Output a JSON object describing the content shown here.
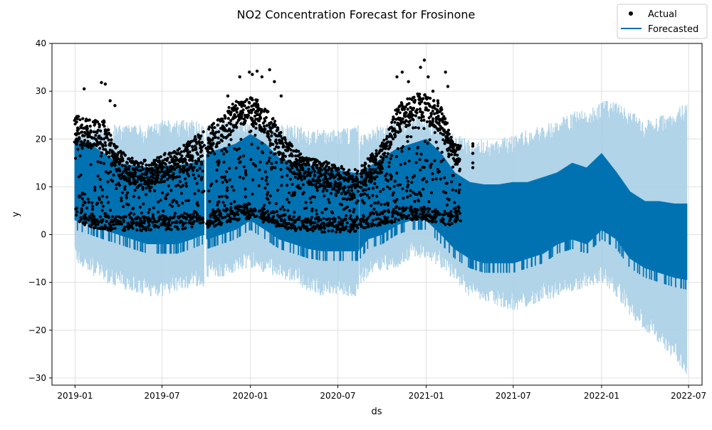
{
  "chart_data": {
    "type": "line",
    "title": "NO2 Concentration Forecast for Frosinone",
    "xlabel": "ds",
    "ylabel": "y",
    "xlim": [
      "2018-11-14",
      "2022-07-29"
    ],
    "ylim": [
      -31.5,
      40
    ],
    "x_ticks": [
      "2019-01",
      "2019-07",
      "2020-01",
      "2020-07",
      "2021-01",
      "2021-07",
      "2022-01",
      "2022-07"
    ],
    "y_ticks": [
      40,
      30,
      20,
      10,
      0,
      -10,
      -20,
      -30
    ],
    "y_tick_labels": [
      "40",
      "30",
      "20",
      "10",
      "0",
      "−10",
      "−20",
      "−30"
    ],
    "grid": true,
    "legend": {
      "placement": "top-right",
      "entries": [
        "Actual",
        "Forecasted"
      ]
    },
    "colors": {
      "forecast": "#0072B2",
      "interval": "#a9cfe6",
      "actual": "#000000"
    },
    "data_end": "2021-04-08",
    "gaps": [
      [
        "2019-09-26",
        "2019-10-02"
      ],
      [
        "2020-08-13",
        "2020-08-16"
      ]
    ],
    "series": [
      {
        "name": "Forecasted",
        "kind": "daily-cycle band",
        "x": [
          "2019-01-01",
          "2019-02-01",
          "2019-03-01",
          "2019-04-01",
          "2019-05-01",
          "2019-06-01",
          "2019-07-01",
          "2019-08-01",
          "2019-09-01",
          "2019-09-25",
          "2019-10-03",
          "2019-11-01",
          "2019-12-01",
          "2020-01-01",
          "2020-02-01",
          "2020-03-01",
          "2020-04-01",
          "2020-05-01",
          "2020-06-01",
          "2020-07-01",
          "2020-08-12",
          "2020-08-17",
          "2020-09-01",
          "2020-10-01",
          "2020-11-01",
          "2020-12-01",
          "2021-01-01",
          "2021-02-01",
          "2021-03-01",
          "2021-04-01",
          "2021-05-01",
          "2021-06-01",
          "2021-07-01",
          "2021-08-01",
          "2021-09-01",
          "2021-10-01",
          "2021-11-01",
          "2021-12-01",
          "2022-01-01",
          "2022-02-01",
          "2022-03-01",
          "2022-04-01",
          "2022-05-01",
          "2022-06-01",
          "2022-06-27"
        ],
        "high": [
          20,
          19,
          17,
          15,
          14.5,
          14,
          14.5,
          14.5,
          15,
          15.5,
          17,
          18,
          19,
          21,
          19,
          16,
          15,
          14.5,
          14,
          13.5,
          12.8,
          13,
          14,
          16,
          18,
          19,
          20,
          17,
          13,
          11,
          10.5,
          10.5,
          11,
          11,
          12,
          13,
          15,
          14,
          17,
          13,
          9,
          7,
          7,
          6.5,
          6.5
        ],
        "low": [
          3,
          2,
          1,
          0,
          -1,
          -2,
          -2,
          -2,
          -1,
          0,
          -1,
          0,
          1,
          3,
          1,
          -1,
          -2,
          -3,
          -3.5,
          -3.5,
          -3.5,
          -3,
          -1,
          0,
          2,
          3,
          3,
          0,
          -3,
          -5,
          -6,
          -6,
          -6,
          -5,
          -4,
          -2,
          -1,
          -2,
          1,
          -1,
          -5,
          -7,
          -8,
          -9,
          -9.5
        ],
        "upper": [
          21,
          21,
          21,
          21,
          21,
          21,
          22,
          22,
          22,
          22,
          21,
          22,
          22,
          22,
          22,
          21,
          21,
          20,
          20,
          20,
          21,
          19,
          20,
          21,
          22,
          23,
          23,
          21,
          19,
          18,
          18,
          18,
          19,
          20,
          21,
          22,
          24,
          24,
          26,
          26,
          24,
          22,
          23,
          24,
          26
        ],
        "lower": [
          -4,
          -6,
          -8,
          -9,
          -10,
          -11,
          -11,
          -10,
          -9,
          -9,
          -7,
          -7,
          -6,
          -5,
          -6,
          -7,
          -8,
          -10,
          -11,
          -11,
          -11,
          -9,
          -7,
          -6,
          -5,
          -3,
          -3,
          -5,
          -8,
          -11,
          -12,
          -13,
          -14,
          -13,
          -12,
          -11,
          -10,
          -9,
          -8,
          -11,
          -15,
          -18,
          -21,
          -24,
          -28
        ]
      },
      {
        "name": "Actual",
        "kind": "daily-cycle observations",
        "x": [
          "2019-01-01",
          "2019-02-01",
          "2019-03-01",
          "2019-04-01",
          "2019-05-01",
          "2019-06-01",
          "2019-07-01",
          "2019-08-01",
          "2019-09-01",
          "2019-09-25",
          "2019-10-03",
          "2019-11-01",
          "2019-12-01",
          "2020-01-01",
          "2020-02-01",
          "2020-03-01",
          "2020-04-01",
          "2020-05-01",
          "2020-06-01",
          "2020-07-01",
          "2020-08-12",
          "2020-08-17",
          "2020-09-01",
          "2020-10-01",
          "2020-11-01",
          "2020-12-01",
          "2021-01-01",
          "2021-02-01",
          "2021-03-01"
        ],
        "high": [
          25,
          24,
          24,
          18,
          16,
          15.5,
          17,
          17.5,
          20,
          22,
          22,
          25,
          28,
          29,
          27,
          22,
          18,
          16,
          15.5,
          14.5,
          13.5,
          14,
          16,
          19,
          27,
          29,
          30,
          27,
          19
        ],
        "low": [
          3,
          1.5,
          1,
          0.8,
          0.8,
          0.8,
          1,
          1,
          1.5,
          2,
          1.5,
          2,
          3,
          3,
          2.5,
          1.5,
          0.8,
          0.8,
          0.5,
          0.5,
          0.5,
          1,
          1.5,
          2,
          2.5,
          3,
          3,
          2,
          2
        ],
        "spikes": [
          {
            "x": "2019-01-20",
            "y": 30.5
          },
          {
            "x": "2019-02-25",
            "y": 31.8
          },
          {
            "x": "2019-03-05",
            "y": 31.5
          },
          {
            "x": "2019-03-15",
            "y": 28
          },
          {
            "x": "2019-03-25",
            "y": 27
          },
          {
            "x": "2019-11-15",
            "y": 29
          },
          {
            "x": "2019-12-10",
            "y": 33
          },
          {
            "x": "2019-12-30",
            "y": 34
          },
          {
            "x": "2020-01-05",
            "y": 33.5
          },
          {
            "x": "2020-01-15",
            "y": 34.2
          },
          {
            "x": "2020-01-25",
            "y": 33
          },
          {
            "x": "2020-02-10",
            "y": 34.5
          },
          {
            "x": "2020-02-20",
            "y": 32
          },
          {
            "x": "2020-03-05",
            "y": 29
          },
          {
            "x": "2020-11-01",
            "y": 33
          },
          {
            "x": "2020-11-12",
            "y": 34
          },
          {
            "x": "2020-11-25",
            "y": 32
          },
          {
            "x": "2020-12-20",
            "y": 35
          },
          {
            "x": "2020-12-28",
            "y": 36.5
          },
          {
            "x": "2021-01-05",
            "y": 33
          },
          {
            "x": "2021-01-15",
            "y": 30
          },
          {
            "x": "2021-01-25",
            "y": 28
          },
          {
            "x": "2021-02-10",
            "y": 34
          },
          {
            "x": "2021-02-15",
            "y": 31
          },
          {
            "x": "2021-04-08",
            "y": 19
          },
          {
            "x": "2021-04-08",
            "y": 18.5
          },
          {
            "x": "2021-04-08",
            "y": 17
          },
          {
            "x": "2021-04-08",
            "y": 15
          },
          {
            "x": "2021-04-08",
            "y": 14
          }
        ]
      }
    ]
  }
}
